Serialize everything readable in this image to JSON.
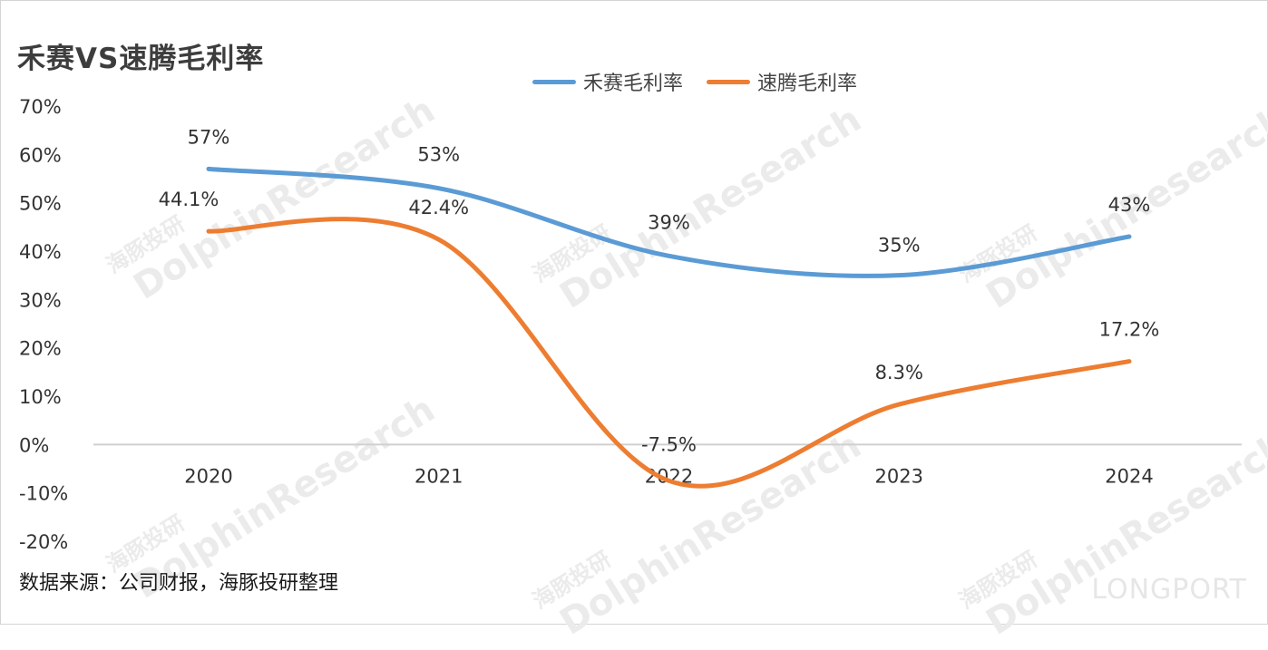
{
  "title": "禾赛VS速腾毛利率",
  "source_note": "数据来源：公司财报，海豚投研整理",
  "watermark_text": "DolphinResearch",
  "watermark_cn": "海豚投研",
  "brand_text": "LONGPORT",
  "chart_data": {
    "type": "line",
    "categories": [
      "2020",
      "2021",
      "2022",
      "2023",
      "2024"
    ],
    "y_ticks": [
      "70%",
      "60%",
      "50%",
      "40%",
      "30%",
      "20%",
      "10%",
      "0%",
      "-10%",
      "-20%"
    ],
    "ylim": [
      -20,
      70
    ],
    "y_unit": "%",
    "grid": false,
    "legend_position": "top-center",
    "series": [
      {
        "name": "禾赛毛利率",
        "color": "#5b9bd5",
        "values": [
          57,
          53,
          39,
          35,
          43
        ],
        "labels": [
          "57%",
          "53%",
          "39%",
          "35%",
          "43%"
        ]
      },
      {
        "name": "速腾毛利率",
        "color": "#ed7d31",
        "values": [
          44.1,
          42.4,
          -7.5,
          8.3,
          17.2
        ],
        "labels": [
          "44.1%",
          "42.4%",
          "-7.5%",
          "8.3%",
          "17.2%"
        ]
      }
    ]
  }
}
